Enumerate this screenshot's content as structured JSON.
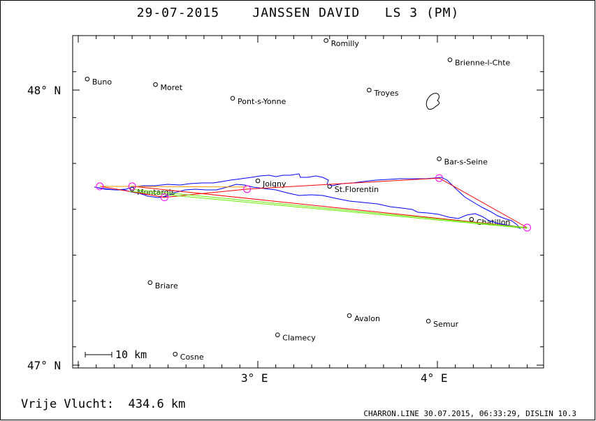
{
  "header": {
    "title": "29-07-2015    JANSSEN DAVID   LS 3 (PM)"
  },
  "map": {
    "y_ticks": [
      {
        "label": "48° N",
        "value": 48.0
      },
      {
        "label": "47° N",
        "value": 47.0
      }
    ],
    "x_ticks": [
      {
        "label": "3° E",
        "value": 3.0
      },
      {
        "label": "4° E",
        "value": 4.0
      }
    ],
    "scale_bar": {
      "label": "10 km"
    },
    "towns": [
      {
        "name": "Romilly",
        "lon": 3.38,
        "lat": 48.18
      },
      {
        "name": "Brienne-l-Chte",
        "lon": 4.07,
        "lat": 48.11
      },
      {
        "name": "Buno",
        "lon": 2.05,
        "lat": 48.04
      },
      {
        "name": "Moret",
        "lon": 2.43,
        "lat": 48.02
      },
      {
        "name": "Troyes",
        "lon": 3.62,
        "lat": 48.0
      },
      {
        "name": "Pont-s-Yonne",
        "lon": 2.86,
        "lat": 47.97
      },
      {
        "name": "Bar-s-Seine",
        "lon": 4.01,
        "lat": 47.75
      },
      {
        "name": "Joigny",
        "lon": 3.0,
        "lat": 47.67
      },
      {
        "name": "St.Florentin",
        "lon": 3.4,
        "lat": 47.65
      },
      {
        "name": "Montargis",
        "lon": 2.3,
        "lat": 47.64
      },
      {
        "name": "Chatillon",
        "lon": 4.19,
        "lat": 47.53
      },
      {
        "name": "Briare",
        "lon": 2.4,
        "lat": 47.3
      },
      {
        "name": "Avalon",
        "lon": 3.51,
        "lat": 47.18
      },
      {
        "name": "Semur",
        "lon": 3.95,
        "lat": 47.16
      },
      {
        "name": "Clamecy",
        "lon": 3.11,
        "lat": 47.11
      },
      {
        "name": "Cosne",
        "lon": 2.54,
        "lat": 47.04
      }
    ],
    "turnpoints": [
      {
        "lon": 2.12,
        "lat": 47.65
      },
      {
        "lon": 2.3,
        "lat": 47.65
      },
      {
        "lon": 2.48,
        "lat": 47.61
      },
      {
        "lon": 2.94,
        "lat": 47.64
      },
      {
        "lon": 4.01,
        "lat": 47.68
      },
      {
        "lon": 4.5,
        "lat": 47.5
      }
    ],
    "task_line": [
      {
        "lon": 2.12,
        "lat": 47.65
      },
      {
        "lon": 2.48,
        "lat": 47.61
      },
      {
        "lon": 2.94,
        "lat": 47.64
      },
      {
        "lon": 4.01,
        "lat": 47.68
      },
      {
        "lon": 4.5,
        "lat": 47.5
      },
      {
        "lon": 2.3,
        "lat": 47.65
      }
    ],
    "colors": {
      "track": "#0000ff",
      "task": "#ff0000",
      "closing": "#66ee00",
      "turnpoint": "#ff00ff",
      "orange": "#ff9900"
    }
  },
  "footer": {
    "distance": "Vrije Vlucht:  434.6 km",
    "credit": "CHARRON.LINE 30.07.2015, 06:33:29, DISLIN 10.3"
  }
}
